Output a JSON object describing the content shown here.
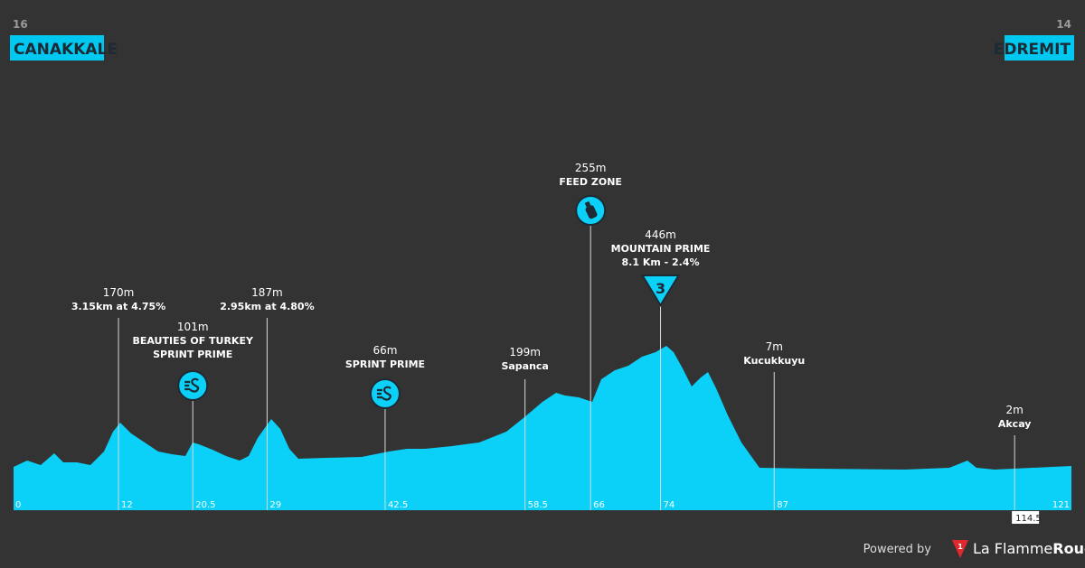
{
  "start": {
    "number": "16",
    "name": "CANAKKALE"
  },
  "finish": {
    "number": "14",
    "name": "EDREMIT"
  },
  "markers": [
    {
      "km": "12",
      "lines": [
        "170m",
        "3.15km at 4.75%"
      ]
    },
    {
      "km": "20.5",
      "lines": [
        "101m",
        "BEAUTIES OF TURKEY",
        "SPRINT PRIME"
      ],
      "icon": "sprint"
    },
    {
      "km": "29",
      "lines": [
        "187m",
        "2.95km at 4.80%"
      ]
    },
    {
      "km": "42.5",
      "lines": [
        "66m",
        "SPRINT PRIME"
      ],
      "icon": "sprint"
    },
    {
      "km": "58.5",
      "lines": [
        "199m",
        "Sapanca"
      ]
    },
    {
      "km": "66",
      "lines": [
        "255m",
        "FEED ZONE"
      ],
      "icon": "feed"
    },
    {
      "km": "74",
      "lines": [
        "446m",
        "MOUNTAIN PRIME",
        "8.1 Km - 2.4%"
      ],
      "icon": "mountain",
      "icon_label": "3"
    },
    {
      "km": "87",
      "lines": [
        "7m",
        "Kucukkuyu"
      ]
    },
    {
      "km": "114.5",
      "lines": [
        "2m",
        "Akcay"
      ]
    }
  ],
  "axis": {
    "start": "0",
    "end": "121"
  },
  "footer": {
    "powered": "Powered by",
    "logo_number": "1",
    "brand_a": "La Flamme",
    "brand_b": "Rouge"
  }
}
